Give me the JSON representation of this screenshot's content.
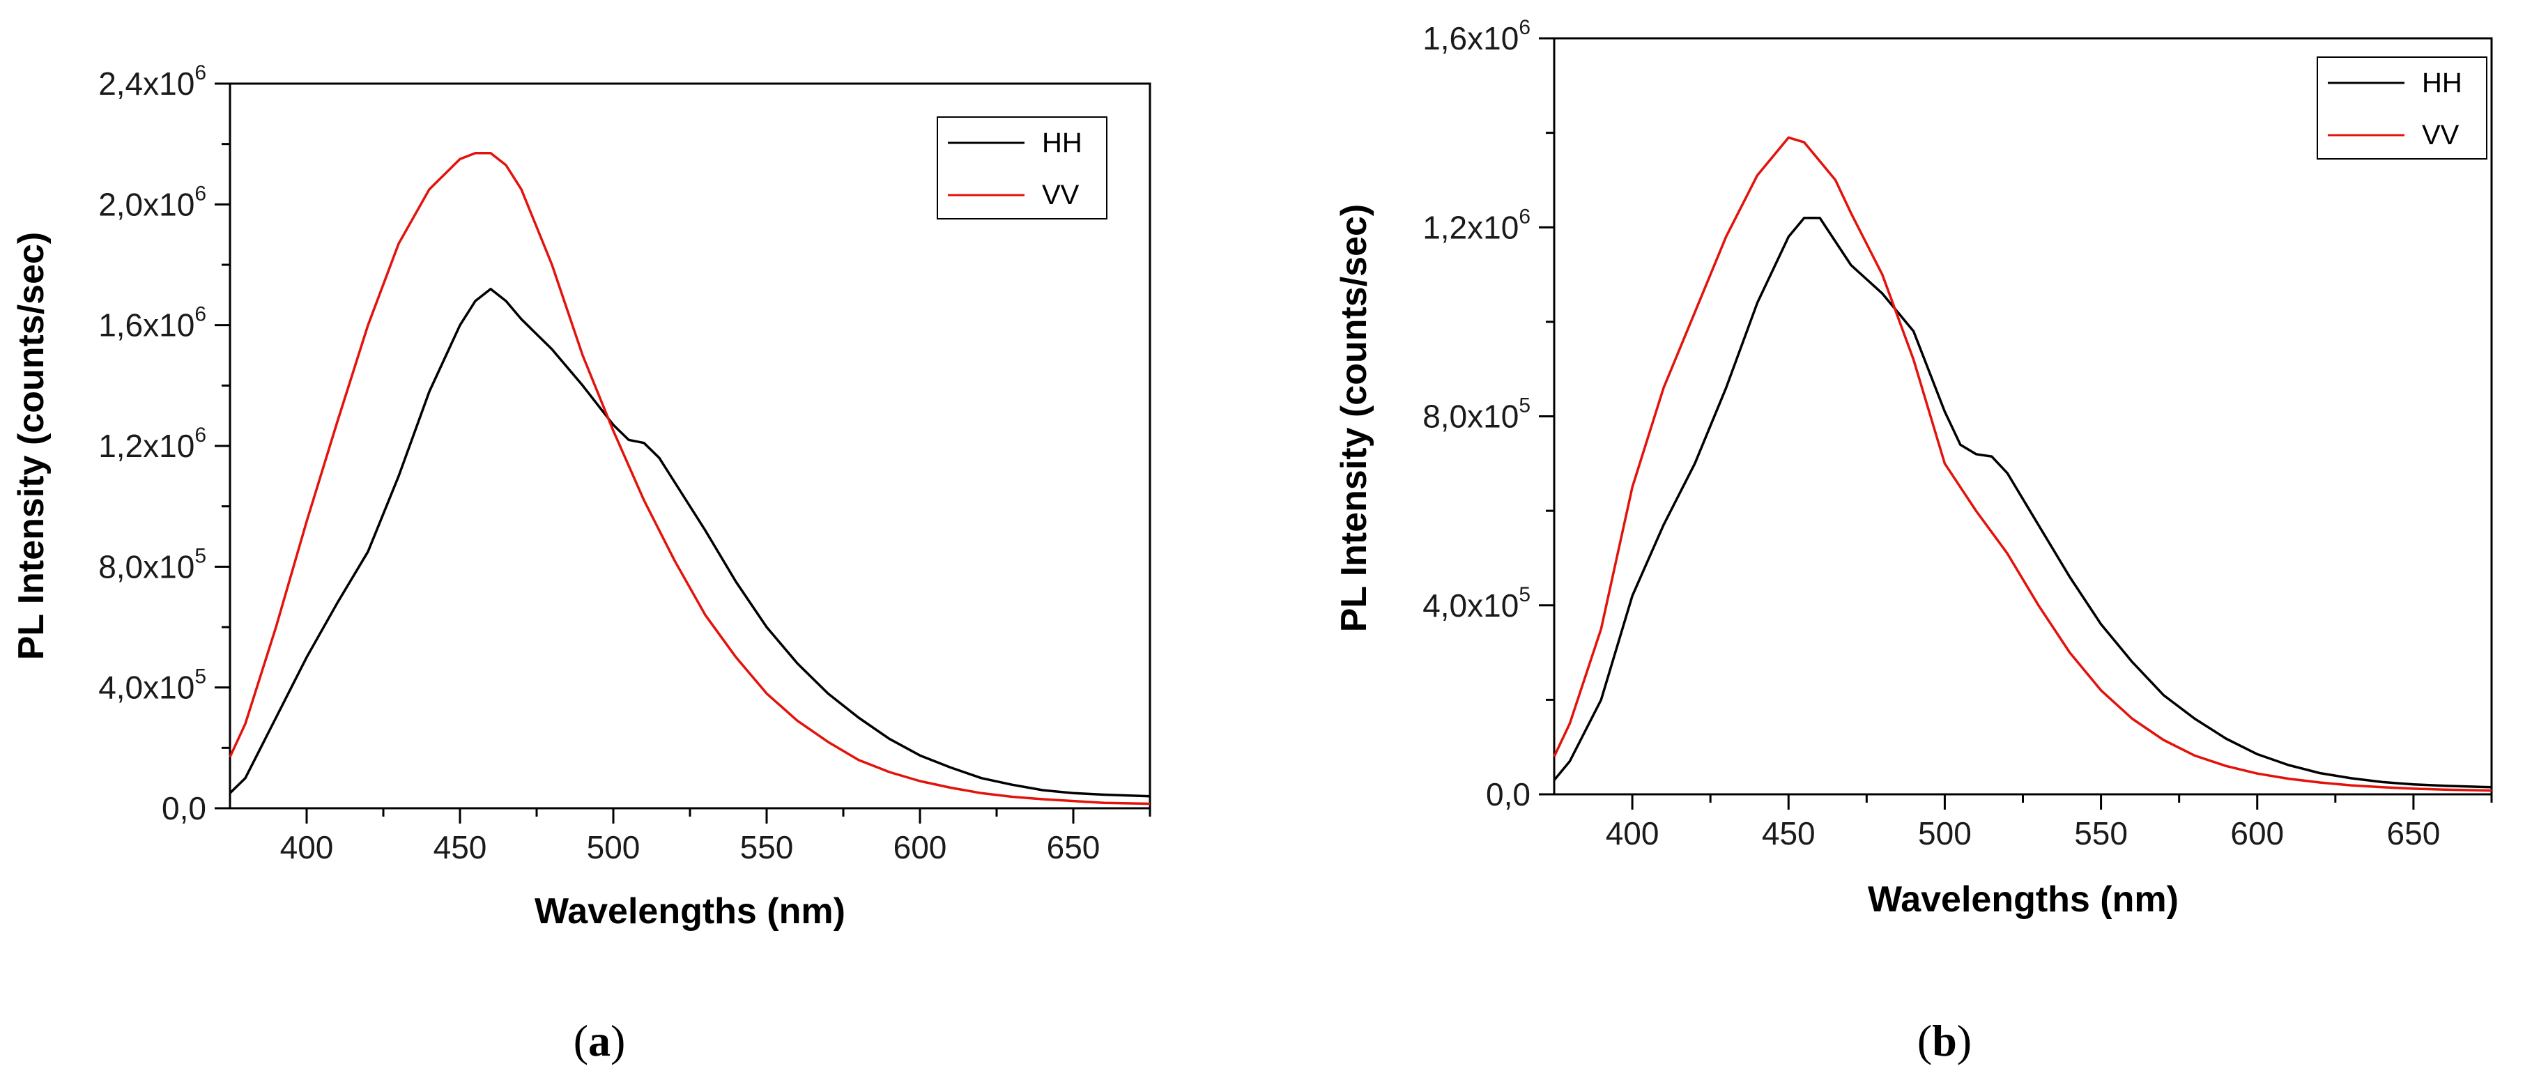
{
  "chart_data": [
    {
      "type": "line",
      "panel_label": "a",
      "xlabel": "Wavelengths (nm)",
      "ylabel": "PL Intensity (counts/sec)",
      "xlim": [
        375,
        675
      ],
      "ylim": [
        0,
        2400000
      ],
      "xticks": [
        400,
        450,
        500,
        550,
        600,
        650
      ],
      "yticks": [
        {
          "mantissa": "0,0",
          "exp": ""
        },
        {
          "mantissa": "4,0x10",
          "exp": "5"
        },
        {
          "mantissa": "8,0x10",
          "exp": "5"
        },
        {
          "mantissa": "1,2x10",
          "exp": "6"
        },
        {
          "mantissa": "1,6x10",
          "exp": "6"
        },
        {
          "mantissa": "2,0x10",
          "exp": "6"
        },
        {
          "mantissa": "2,4x10",
          "exp": "6"
        }
      ],
      "ytick_values": [
        0,
        400000,
        800000,
        1200000,
        1600000,
        2000000,
        2400000
      ],
      "legend_position": "top-right",
      "series": [
        {
          "name": "HH",
          "color": "#000000",
          "x": [
            375,
            380,
            390,
            400,
            410,
            420,
            430,
            440,
            450,
            455,
            460,
            465,
            470,
            480,
            490,
            500,
            505,
            510,
            515,
            520,
            530,
            540,
            550,
            560,
            570,
            580,
            590,
            600,
            610,
            620,
            630,
            640,
            650,
            660,
            675
          ],
          "y": [
            50000,
            100000,
            300000,
            500000,
            680000,
            850000,
            1100000,
            1380000,
            1600000,
            1680000,
            1720000,
            1680000,
            1620000,
            1520000,
            1400000,
            1270000,
            1220000,
            1210000,
            1160000,
            1080000,
            920000,
            750000,
            600000,
            480000,
            380000,
            300000,
            230000,
            175000,
            135000,
            100000,
            78000,
            60000,
            50000,
            45000,
            40000
          ]
        },
        {
          "name": "VV",
          "color": "#e3120b",
          "x": [
            375,
            380,
            390,
            400,
            410,
            420,
            430,
            440,
            450,
            455,
            460,
            465,
            470,
            480,
            490,
            500,
            510,
            520,
            530,
            540,
            550,
            560,
            570,
            580,
            590,
            600,
            610,
            620,
            630,
            640,
            650,
            660,
            675
          ],
          "y": [
            170000,
            280000,
            600000,
            950000,
            1280000,
            1600000,
            1870000,
            2050000,
            2150000,
            2170000,
            2170000,
            2130000,
            2050000,
            1800000,
            1500000,
            1250000,
            1020000,
            820000,
            640000,
            500000,
            380000,
            290000,
            220000,
            160000,
            120000,
            90000,
            68000,
            50000,
            38000,
            30000,
            24000,
            18000,
            15000
          ]
        }
      ]
    },
    {
      "type": "line",
      "panel_label": "b",
      "xlabel": "Wavelengths (nm)",
      "ylabel": "PL Intensity (counts/sec)",
      "xlim": [
        375,
        675
      ],
      "ylim": [
        0,
        1600000
      ],
      "xticks": [
        400,
        450,
        500,
        550,
        600,
        650
      ],
      "yticks": [
        {
          "mantissa": "0,0",
          "exp": ""
        },
        {
          "mantissa": "4,0x10",
          "exp": "5"
        },
        {
          "mantissa": "8,0x10",
          "exp": "5"
        },
        {
          "mantissa": "1,2x10",
          "exp": "6"
        },
        {
          "mantissa": "1,6x10",
          "exp": "6"
        }
      ],
      "ytick_values": [
        0,
        400000,
        800000,
        1200000,
        1600000
      ],
      "legend_position": "top-right",
      "series": [
        {
          "name": "HH",
          "color": "#000000",
          "x": [
            375,
            380,
            390,
            400,
            410,
            420,
            430,
            440,
            450,
            455,
            460,
            465,
            470,
            480,
            490,
            500,
            505,
            510,
            515,
            520,
            530,
            540,
            550,
            560,
            570,
            580,
            590,
            600,
            610,
            620,
            630,
            640,
            650,
            660,
            675
          ],
          "y": [
            30000,
            70000,
            200000,
            420000,
            570000,
            700000,
            860000,
            1040000,
            1180000,
            1220000,
            1220000,
            1170000,
            1120000,
            1060000,
            980000,
            810000,
            740000,
            720000,
            715000,
            680000,
            570000,
            460000,
            360000,
            280000,
            210000,
            160000,
            118000,
            85000,
            62000,
            45000,
            34000,
            26000,
            21000,
            18000,
            15000
          ]
        },
        {
          "name": "VV",
          "color": "#e3120b",
          "x": [
            375,
            380,
            390,
            400,
            410,
            420,
            430,
            440,
            450,
            455,
            460,
            465,
            470,
            480,
            490,
            500,
            510,
            520,
            530,
            540,
            550,
            560,
            570,
            580,
            590,
            600,
            610,
            620,
            630,
            640,
            650,
            660,
            675
          ],
          "y": [
            80000,
            150000,
            350000,
            650000,
            860000,
            1020000,
            1180000,
            1310000,
            1390000,
            1380000,
            1340000,
            1300000,
            1230000,
            1100000,
            920000,
            700000,
            600000,
            510000,
            400000,
            300000,
            220000,
            160000,
            115000,
            82000,
            60000,
            44000,
            33000,
            25000,
            19000,
            15000,
            12000,
            10000,
            8000
          ]
        }
      ]
    }
  ],
  "captions": [
    "a",
    "b"
  ]
}
